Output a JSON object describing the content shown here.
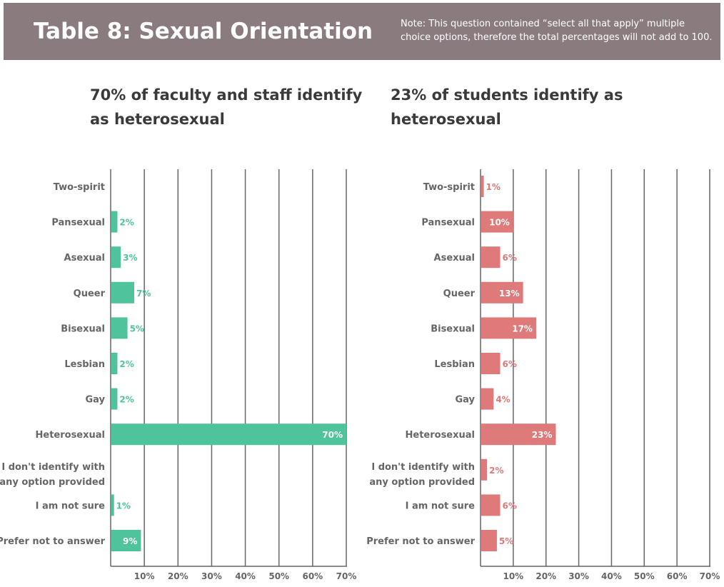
{
  "banner": {
    "title": "Table 8:  Sexual Orientation",
    "note": "Note: This question contained “select all that apply” multiple choice options, therefore the total percentages will not add to 100."
  },
  "colors": {
    "faculty": "#4fc49c",
    "students": "#de7a79",
    "banner": "#8a7b7f",
    "grid": "#666666"
  },
  "chart_data": [
    {
      "type": "bar",
      "orientation": "horizontal",
      "title": "70% of faculty and staff identify as heterosexual",
      "categories": [
        "Two-spirit",
        "Pansexual",
        "Asexual",
        "Queer",
        "Bisexual",
        "Lesbian",
        "Gay",
        "Heterosexual",
        "I don't identify with any option provided",
        "I am not sure",
        "Prefer not to answer"
      ],
      "values": [
        null,
        2,
        3,
        7,
        5,
        2,
        2,
        70,
        null,
        1,
        9
      ],
      "data_labels": [
        "",
        "2%",
        "3%",
        "7%",
        "5%",
        "2%",
        "2%",
        "70%",
        "",
        "1%",
        "9%"
      ],
      "xlim": [
        0,
        70
      ],
      "x_ticks": [
        "10%",
        "20%",
        "30%",
        "40%",
        "50%",
        "60%",
        "70%"
      ],
      "grid": true
    },
    {
      "type": "bar",
      "orientation": "horizontal",
      "title": "23% of students identify as heterosexual",
      "categories": [
        "Two-spirit",
        "Pansexual",
        "Asexual",
        "Queer",
        "Bisexual",
        "Lesbian",
        "Gay",
        "Heterosexual",
        "I don't identify with any option provided",
        "I am not sure",
        "Prefer not to answer"
      ],
      "values": [
        1,
        10,
        6,
        13,
        17,
        6,
        4,
        23,
        2,
        6,
        5
      ],
      "data_labels": [
        "1%",
        "10%",
        "6%",
        "13%",
        "17%",
        "6%",
        "4%",
        "23%",
        "2%",
        "6%",
        "5%"
      ],
      "xlim": [
        0,
        70
      ],
      "x_ticks": [
        "10%",
        "20%",
        "30%",
        "40%",
        "50%",
        "60%",
        "70%"
      ],
      "grid": true
    }
  ]
}
